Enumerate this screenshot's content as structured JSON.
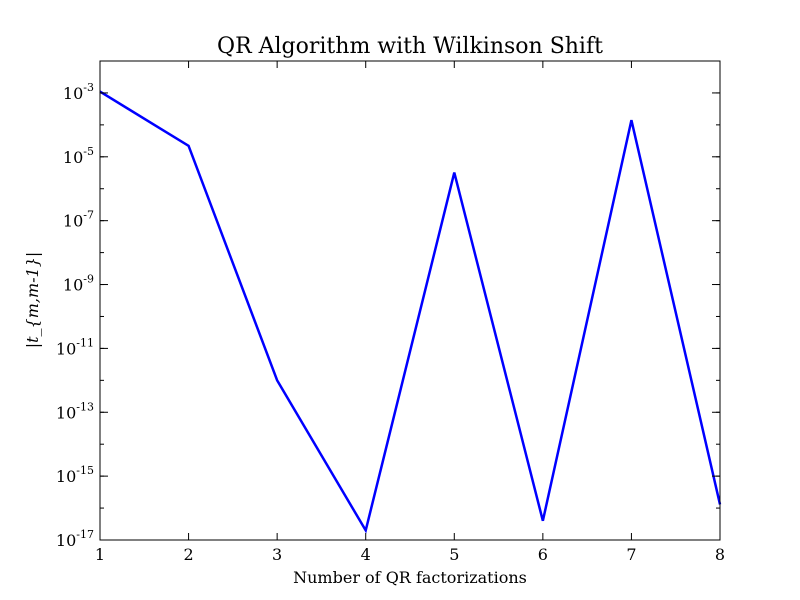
{
  "chart_data": {
    "type": "line",
    "title": "QR Algorithm with Wilkinson Shift",
    "xlabel": "Number of QR factorizations",
    "ylabel": "|t_{m,m-1}|",
    "x_scale": "linear",
    "y_scale": "log",
    "xlim": [
      1,
      8
    ],
    "ylim": [
      1e-17,
      0.01
    ],
    "grid": false,
    "x_ticks": [
      1,
      2,
      3,
      4,
      5,
      6,
      7,
      8
    ],
    "x_tick_labels": [
      "1",
      "2",
      "3",
      "4",
      "5",
      "6",
      "7",
      "8"
    ],
    "y_ticks": [
      1e-17,
      1e-15,
      1e-13,
      1e-11,
      1e-09,
      1e-07,
      1e-05,
      0.001
    ],
    "y_tick_labels": [
      {
        "base": "10",
        "exp": "-17"
      },
      {
        "base": "10",
        "exp": "-15"
      },
      {
        "base": "10",
        "exp": "-13"
      },
      {
        "base": "10",
        "exp": "-11"
      },
      {
        "base": "10",
        "exp": "-9"
      },
      {
        "base": "10",
        "exp": "-7"
      },
      {
        "base": "10",
        "exp": "-5"
      },
      {
        "base": "10",
        "exp": "-3"
      }
    ],
    "series": [
      {
        "color": "#0000ff",
        "x": [
          1,
          2,
          3,
          4,
          5,
          6,
          7,
          8
        ],
        "y": [
          0.0011,
          2.2e-05,
          1e-12,
          2e-17,
          3.2e-06,
          4e-17,
          0.00014,
          1.3e-16
        ]
      }
    ]
  }
}
